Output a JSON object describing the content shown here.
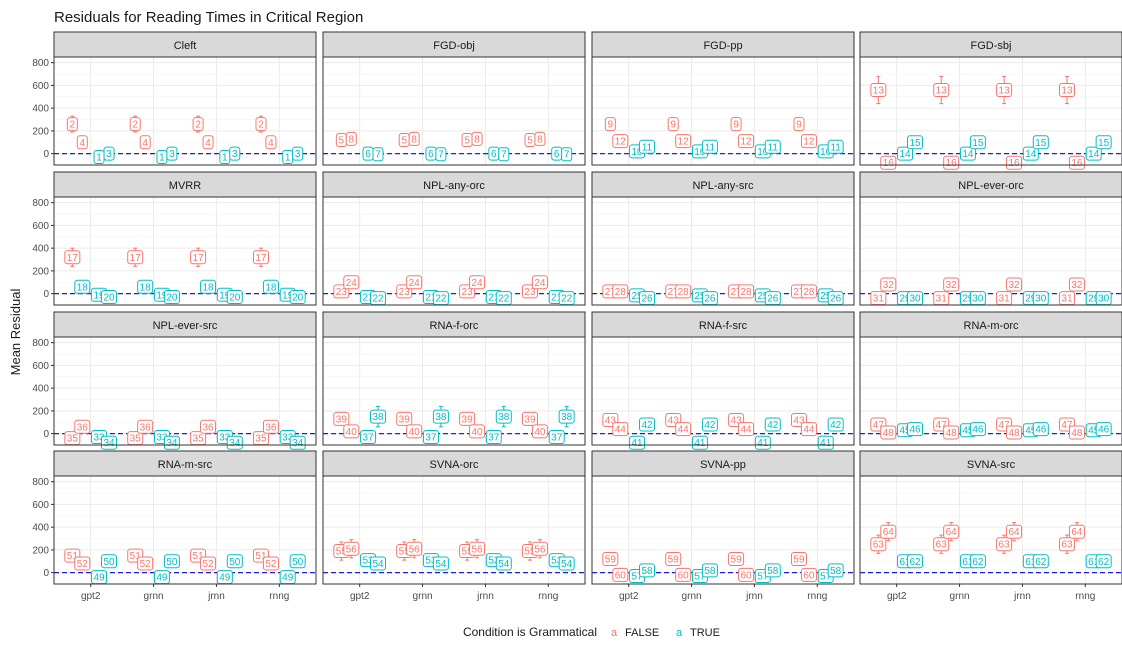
{
  "chart_data": {
    "type": "scatter",
    "title": "Residuals for Reading Times in Critical Region",
    "ylabel": "Mean Residual",
    "xlabel": "",
    "ylim": [
      -100,
      850
    ],
    "yticks": [
      0,
      200,
      400,
      600,
      800
    ],
    "categories": [
      "gpt2",
      "grnn",
      "jrnn",
      "rnng"
    ],
    "reference_line": 0,
    "legend": {
      "title": "Condition is Grammatical",
      "glyph": "a",
      "position": "bottom",
      "entries": [
        {
          "label": "FALSE",
          "color": "#F8766D"
        },
        {
          "label": "TRUE",
          "color": "#00BFC4"
        }
      ]
    },
    "colors": {
      "false": "#F8766D",
      "true": "#00BFC4",
      "refline": "#1f1fd1",
      "strip": "#d9d9d9",
      "grid": "#ebebeb"
    },
    "panels": [
      {
        "name": "Cleft",
        "items": [
          [
            2,
            0,
            260,
            70
          ],
          [
            4,
            0,
            100,
            45
          ],
          [
            1,
            1,
            -30,
            45
          ],
          [
            3,
            1,
            0,
            40
          ]
        ]
      },
      {
        "name": "FGD-obj",
        "items": [
          [
            5,
            0,
            120,
            30
          ],
          [
            8,
            0,
            130,
            30
          ],
          [
            6,
            1,
            0,
            30
          ],
          [
            7,
            1,
            -5,
            30
          ]
        ]
      },
      {
        "name": "FGD-pp",
        "items": [
          [
            9,
            0,
            260,
            30
          ],
          [
            12,
            0,
            110,
            30
          ],
          [
            10,
            1,
            20,
            30
          ],
          [
            11,
            1,
            60,
            30
          ]
        ]
      },
      {
        "name": "FGD-sbj",
        "items": [
          [
            13,
            0,
            560,
            120
          ],
          [
            16,
            0,
            -80,
            25
          ],
          [
            14,
            1,
            0,
            25
          ],
          [
            15,
            1,
            100,
            25
          ]
        ]
      },
      {
        "name": "MVRR",
        "items": [
          [
            17,
            0,
            320,
            80
          ],
          [
            18,
            1,
            60,
            30
          ],
          [
            19,
            1,
            -10,
            30
          ],
          [
            20,
            1,
            -30,
            30
          ]
        ]
      },
      {
        "name": "NPL-any-orc",
        "items": [
          [
            23,
            0,
            20,
            25
          ],
          [
            24,
            0,
            100,
            30
          ],
          [
            21,
            1,
            -30,
            25
          ],
          [
            22,
            1,
            -40,
            25
          ]
        ]
      },
      {
        "name": "NPL-any-src",
        "items": [
          [
            27,
            0,
            20,
            25
          ],
          [
            28,
            0,
            20,
            25
          ],
          [
            25,
            1,
            -15,
            25
          ],
          [
            26,
            1,
            -40,
            25
          ]
        ]
      },
      {
        "name": "NPL-ever-orc",
        "items": [
          [
            31,
            0,
            -40,
            25
          ],
          [
            32,
            0,
            80,
            25
          ],
          [
            29,
            1,
            -40,
            20
          ],
          [
            30,
            1,
            -40,
            20
          ]
        ]
      },
      {
        "name": "NPL-ever-src",
        "items": [
          [
            35,
            0,
            -40,
            25
          ],
          [
            36,
            0,
            60,
            25
          ],
          [
            33,
            1,
            -30,
            20
          ],
          [
            34,
            1,
            -80,
            20
          ]
        ]
      },
      {
        "name": "RNA-f-orc",
        "items": [
          [
            39,
            0,
            130,
            30
          ],
          [
            40,
            0,
            20,
            30
          ],
          [
            37,
            1,
            -30,
            30
          ],
          [
            38,
            1,
            150,
            90
          ]
        ]
      },
      {
        "name": "RNA-f-src",
        "items": [
          [
            43,
            0,
            120,
            25
          ],
          [
            44,
            0,
            40,
            25
          ],
          [
            41,
            1,
            -80,
            25
          ],
          [
            42,
            1,
            80,
            30
          ]
        ]
      },
      {
        "name": "RNA-m-orc",
        "items": [
          [
            47,
            0,
            80,
            25
          ],
          [
            48,
            0,
            10,
            25
          ],
          [
            45,
            1,
            30,
            25
          ],
          [
            46,
            1,
            40,
            25
          ]
        ]
      },
      {
        "name": "RNA-m-src",
        "items": [
          [
            51,
            0,
            150,
            35
          ],
          [
            52,
            0,
            80,
            25
          ],
          [
            49,
            1,
            -40,
            25
          ],
          [
            50,
            1,
            100,
            25
          ]
        ]
      },
      {
        "name": "SVNA-orc",
        "items": [
          [
            55,
            0,
            190,
            80
          ],
          [
            56,
            0,
            210,
            80
          ],
          [
            53,
            1,
            110,
            40
          ],
          [
            54,
            1,
            80,
            40
          ]
        ]
      },
      {
        "name": "SVNA-pp",
        "items": [
          [
            59,
            0,
            120,
            40
          ],
          [
            60,
            0,
            -20,
            30
          ],
          [
            57,
            1,
            -30,
            30
          ],
          [
            58,
            1,
            20,
            30
          ]
        ]
      },
      {
        "name": "SVNA-src",
        "items": [
          [
            63,
            0,
            250,
            80
          ],
          [
            64,
            0,
            360,
            80
          ],
          [
            61,
            1,
            100,
            30
          ],
          [
            62,
            1,
            100,
            30
          ]
        ]
      }
    ]
  }
}
